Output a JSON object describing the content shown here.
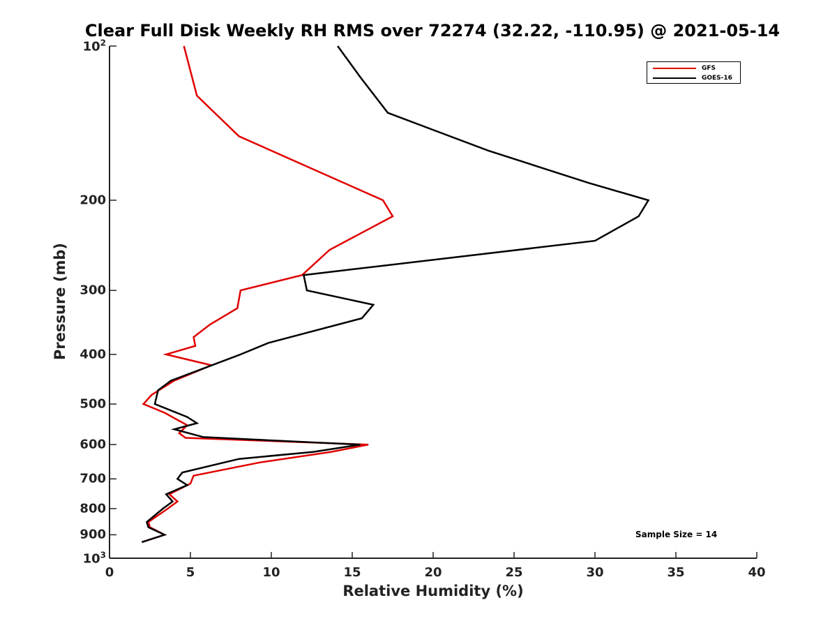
{
  "chart_data": {
    "type": "line",
    "title": "Clear Full Disk Weekly RH RMS over 72274 (32.22, -110.95) @ 2021-05-14",
    "xlabel": "Relative Humidity (%)",
    "ylabel": "Pressure (mb)",
    "xlim": [
      0,
      40
    ],
    "ylim": [
      100,
      1000
    ],
    "y_scale": "log",
    "y_reversed": true,
    "x_ticks": [
      "0",
      "5",
      "10",
      "15",
      "20",
      "25",
      "30",
      "35",
      "40"
    ],
    "y_ticks": [
      {
        "value": 100,
        "base": "10",
        "exp": "2"
      },
      {
        "value": 200,
        "label": "200"
      },
      {
        "value": 300,
        "label": "300"
      },
      {
        "value": 400,
        "label": "400"
      },
      {
        "value": 500,
        "label": "500"
      },
      {
        "value": 600,
        "label": "600"
      },
      {
        "value": 700,
        "label": "700"
      },
      {
        "value": 800,
        "label": "800"
      },
      {
        "value": 900,
        "label": "900"
      },
      {
        "value": 1000,
        "base": "10",
        "exp": "3"
      }
    ],
    "legend_position": "top-right",
    "annotation": "Sample Size = 14",
    "series": [
      {
        "name": "GFS",
        "color": "#e00000",
        "points": [
          [
            4.6,
            100
          ],
          [
            5.4,
            125
          ],
          [
            8.0,
            150
          ],
          [
            16.9,
            200
          ],
          [
            17.5,
            215
          ],
          [
            13.6,
            250
          ],
          [
            11.9,
            280
          ],
          [
            8.1,
            300
          ],
          [
            7.9,
            325
          ],
          [
            6.2,
            350
          ],
          [
            5.2,
            370
          ],
          [
            5.3,
            385
          ],
          [
            3.5,
            400
          ],
          [
            6.3,
            420
          ],
          [
            4.0,
            450
          ],
          [
            2.6,
            480
          ],
          [
            2.1,
            500
          ],
          [
            3.4,
            520
          ],
          [
            4.8,
            550
          ],
          [
            4.3,
            570
          ],
          [
            4.7,
            582
          ],
          [
            16.0,
            600
          ],
          [
            13.7,
            620
          ],
          [
            9.3,
            650
          ],
          [
            5.2,
            690
          ],
          [
            5.0,
            715
          ],
          [
            3.7,
            750
          ],
          [
            4.2,
            775
          ],
          [
            3.6,
            800
          ],
          [
            2.4,
            850
          ],
          [
            2.5,
            870
          ],
          [
            3.4,
            900
          ],
          [
            2.0,
            930
          ]
        ]
      },
      {
        "name": "GOES-16",
        "color": "#000000",
        "points": [
          [
            14.1,
            100
          ],
          [
            15.5,
            115
          ],
          [
            17.2,
            135
          ],
          [
            23.4,
            160
          ],
          [
            29.6,
            185
          ],
          [
            33.3,
            200
          ],
          [
            32.7,
            215
          ],
          [
            30.0,
            240
          ],
          [
            12.0,
            280
          ],
          [
            12.2,
            300
          ],
          [
            16.3,
            320
          ],
          [
            15.6,
            340
          ],
          [
            9.8,
            380
          ],
          [
            8.1,
            400
          ],
          [
            3.8,
            450
          ],
          [
            3.0,
            470
          ],
          [
            2.8,
            500
          ],
          [
            4.8,
            530
          ],
          [
            5.4,
            545
          ],
          [
            4.0,
            560
          ],
          [
            5.8,
            580
          ],
          [
            15.5,
            600
          ],
          [
            12.6,
            620
          ],
          [
            8.0,
            640
          ],
          [
            4.5,
            680
          ],
          [
            4.2,
            700
          ],
          [
            4.8,
            720
          ],
          [
            3.5,
            750
          ],
          [
            3.9,
            775
          ],
          [
            3.3,
            800
          ],
          [
            2.3,
            850
          ],
          [
            2.4,
            870
          ],
          [
            3.4,
            900
          ],
          [
            2.0,
            930
          ]
        ]
      }
    ]
  }
}
